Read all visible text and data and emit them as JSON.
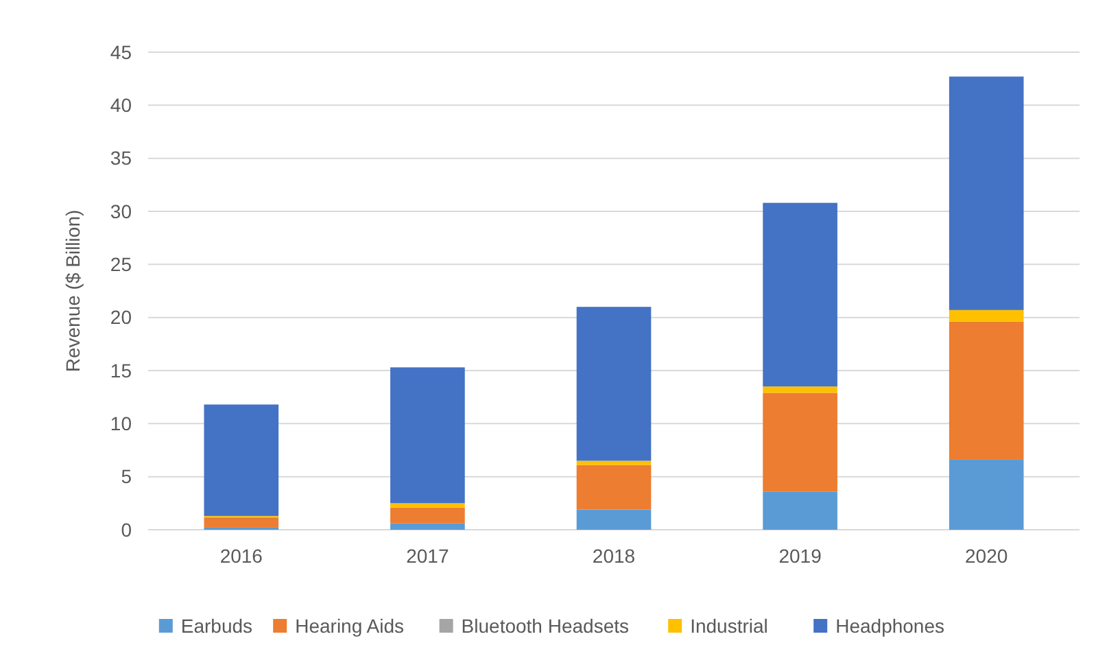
{
  "chart_data": {
    "type": "bar",
    "stacked": true,
    "ylabel": "Revenue  ($ Billion)",
    "categories": [
      "2016",
      "2017",
      "2018",
      "2019",
      "2020"
    ],
    "series": [
      {
        "name": "Earbuds",
        "color": "#5b9bd5",
        "values": [
          0.2,
          0.6,
          1.9,
          3.6,
          6.6
        ]
      },
      {
        "name": "Hearing Aids",
        "color": "#ed7d31",
        "values": [
          0.9,
          1.5,
          4.2,
          9.3,
          13.0
        ]
      },
      {
        "name": "Bluetooth Headsets",
        "color": "#a5a5a5",
        "values": [
          0.1,
          null,
          null,
          null,
          null
        ]
      },
      {
        "name": "Industrial",
        "color": "#ffc000",
        "values": [
          0.1,
          0.4,
          0.4,
          0.6,
          1.1
        ]
      },
      {
        "name": "Headphones",
        "color": "#4472c4",
        "values": [
          10.5,
          12.8,
          14.5,
          17.3,
          22.0
        ]
      }
    ],
    "ylim": [
      0,
      45
    ],
    "yticks": [
      0,
      5,
      10,
      15,
      20,
      25,
      30,
      35,
      40,
      45
    ],
    "grid": "y",
    "legend": "bottom"
  }
}
